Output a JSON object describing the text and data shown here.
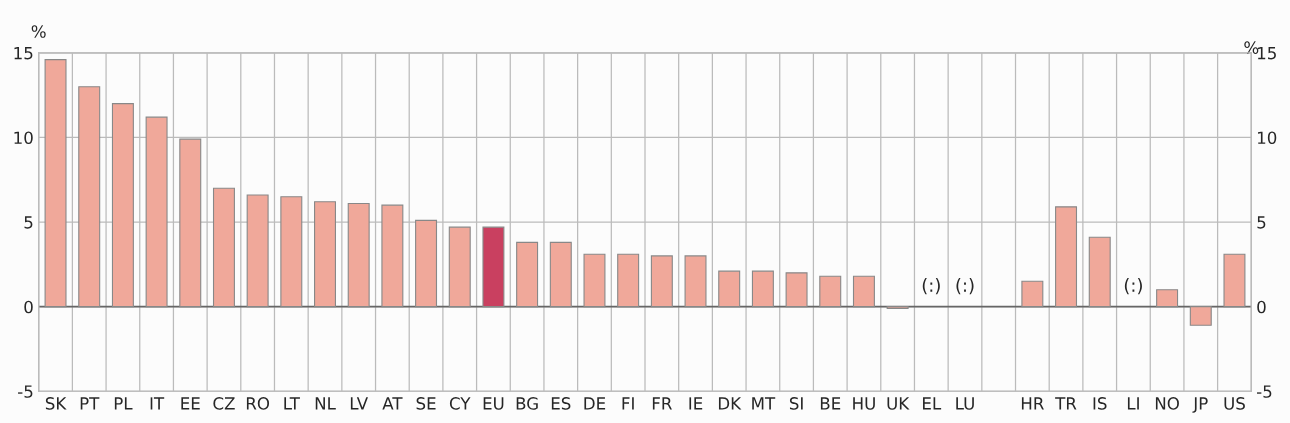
{
  "chart_data": {
    "type": "bar",
    "categories": [
      "SK",
      "PT",
      "PL",
      "IT",
      "EE",
      "CZ",
      "RO",
      "LT",
      "NL",
      "LV",
      "AT",
      "SE",
      "CY",
      "EU",
      "BG",
      "ES",
      "DE",
      "FI",
      "FR",
      "IE",
      "DK",
      "MT",
      "SI",
      "BE",
      "HU",
      "UK",
      "EL",
      "LU",
      null,
      "HR",
      "TR",
      "IS",
      "LI",
      "NO",
      "JP",
      "US"
    ],
    "values": [
      14.6,
      13.0,
      12.0,
      11.2,
      9.9,
      7.0,
      6.6,
      6.5,
      6.2,
      6.1,
      6.0,
      5.1,
      4.7,
      4.7,
      3.8,
      3.8,
      3.1,
      3.1,
      3.0,
      3.0,
      2.1,
      2.1,
      2.0,
      1.8,
      1.8,
      -0.1,
      null,
      null,
      null,
      1.5,
      5.9,
      4.1,
      null,
      1.0,
      -1.1,
      3.1
    ],
    "colors": [
      "#f0a89a",
      "#f0a89a",
      "#f0a89a",
      "#f0a89a",
      "#f0a89a",
      "#f0a89a",
      "#f0a89a",
      "#f0a89a",
      "#f0a89a",
      "#f0a89a",
      "#f0a89a",
      "#f0a89a",
      "#f0a89a",
      "#c94060",
      "#f0a89a",
      "#f0a89a",
      "#f0a89a",
      "#f0a89a",
      "#f0a89a",
      "#f0a89a",
      "#f0a89a",
      "#f0a89a",
      "#f0a89a",
      "#f0a89a",
      "#f0a89a",
      "#f0a89a",
      "#f0a89a",
      "#f0a89a",
      "#f0a89a",
      "#f0a89a",
      "#f0a89a",
      "#f0a89a",
      "#f0a89a",
      "#f0a89a",
      "#f0a89a",
      "#f0a89a"
    ],
    "ylabel": "%",
    "y2label": "%",
    "ylim": [
      -5,
      15
    ],
    "yticks": [
      -5,
      0,
      5,
      10,
      15
    ],
    "y2lim": [
      -5,
      15
    ],
    "y2ticks": [
      -5,
      0,
      5,
      10,
      15
    ],
    "ref_lines": [
      {
        "axis": "y",
        "value": 0,
        "color": "#666666"
      }
    ],
    "annotations": [
      "(:)",
      "(:)",
      "(:)"
    ],
    "grid": true
  }
}
